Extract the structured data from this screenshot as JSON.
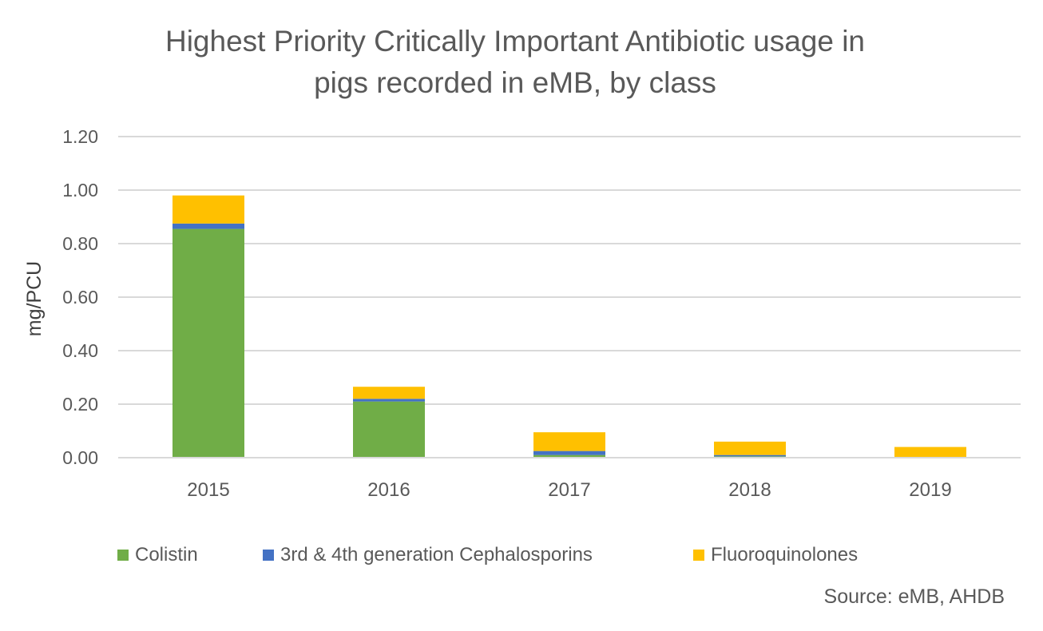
{
  "chart_data": {
    "type": "bar",
    "stacked": true,
    "title": "Highest Priority Critically Important Antibiotic usage in pigs recorded in eMB, by class",
    "title_lines": [
      "Highest Priority Critically Important Antibiotic usage in",
      "pigs recorded in eMB, by class"
    ],
    "xlabel": "",
    "ylabel": "mg/PCU",
    "categories": [
      "2015",
      "2016",
      "2017",
      "2018",
      "2019"
    ],
    "ylim": [
      0,
      1.2
    ],
    "yticks": [
      "0.00",
      "0.20",
      "0.40",
      "0.60",
      "0.80",
      "1.00",
      "1.20"
    ],
    "grid": true,
    "legend_position": "bottom",
    "series": [
      {
        "name": "Colistin",
        "color": "#70AD47",
        "values": [
          0.855,
          0.21,
          0.01,
          0.005,
          0.0
        ]
      },
      {
        "name": "3rd & 4th generation Cephalosporins",
        "color": "#4472C4",
        "values": [
          0.02,
          0.01,
          0.015,
          0.005,
          0.002
        ]
      },
      {
        "name": "Fluoroquinolones",
        "color": "#FFC000",
        "values": [
          0.105,
          0.045,
          0.07,
          0.05,
          0.038
        ]
      }
    ],
    "source": "Source: eMB, AHDB"
  }
}
